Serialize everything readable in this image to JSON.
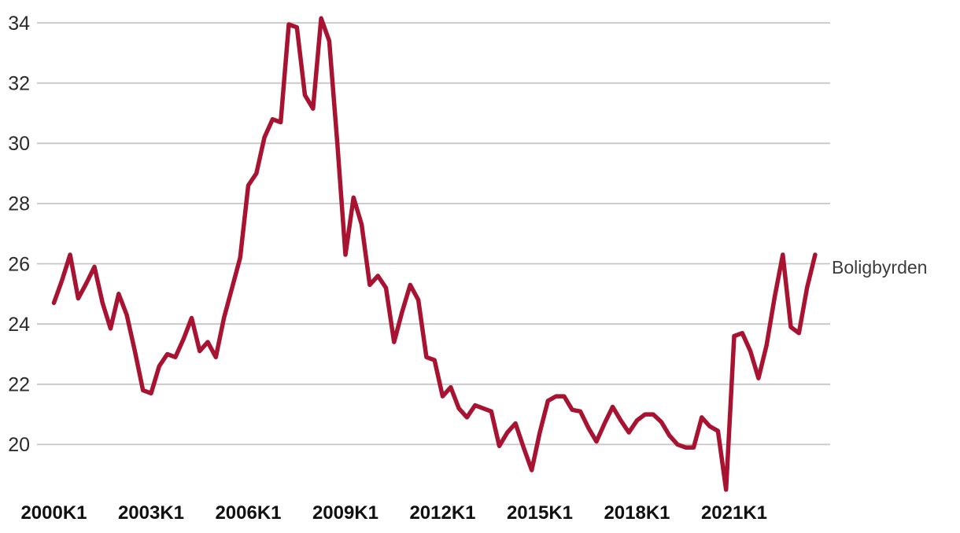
{
  "chart_data": {
    "type": "line",
    "title": "",
    "series_label": "Boligbyrden",
    "line_color": "#a81332",
    "grid_color": "#c6c6c6",
    "y_label_color": "#2b2b2b",
    "x_label_color": "#111111",
    "legend_text_color": "#3c3c3c",
    "grid_on": true,
    "legend_position": "right-of-line-end",
    "ylim": [
      18.2,
      34.4
    ],
    "y_ticks": [
      34,
      32,
      30,
      28,
      26,
      24,
      22,
      20
    ],
    "x_tick_labels": [
      "2000K1",
      "2003K1",
      "2006K1",
      "2009K1",
      "2012K1",
      "2015K1",
      "2018K1",
      "2021K1"
    ],
    "x_tick_quarter_indices": [
      0,
      12,
      24,
      36,
      48,
      60,
      72,
      84
    ],
    "x_unit": "quarter",
    "quarters": [
      "2000K1",
      "2000K2",
      "2000K3",
      "2000K4",
      "2001K1",
      "2001K2",
      "2001K3",
      "2001K4",
      "2002K1",
      "2002K2",
      "2002K3",
      "2002K4",
      "2003K1",
      "2003K2",
      "2003K3",
      "2003K4",
      "2004K1",
      "2004K2",
      "2004K3",
      "2004K4",
      "2005K1",
      "2005K2",
      "2005K3",
      "2005K4",
      "2006K1",
      "2006K2",
      "2006K3",
      "2006K4",
      "2007K1",
      "2007K2",
      "2007K3",
      "2007K4",
      "2008K1",
      "2008K2",
      "2008K3",
      "2008K4",
      "2009K1",
      "2009K2",
      "2009K3",
      "2009K4",
      "2010K1",
      "2010K2",
      "2010K3",
      "2010K4",
      "2011K1",
      "2011K2",
      "2011K3",
      "2011K4",
      "2012K1",
      "2012K2",
      "2012K3",
      "2012K4",
      "2013K1",
      "2013K2",
      "2013K3",
      "2013K4",
      "2014K1",
      "2014K2",
      "2014K3",
      "2014K4",
      "2015K1",
      "2015K2",
      "2015K3",
      "2015K4",
      "2016K1",
      "2016K2",
      "2016K3",
      "2016K4",
      "2017K1",
      "2017K2",
      "2017K3",
      "2017K4",
      "2018K1",
      "2018K2",
      "2018K3",
      "2018K4",
      "2019K1",
      "2019K2",
      "2019K3",
      "2019K4",
      "2020K1",
      "2020K2",
      "2020K3",
      "2020K4",
      "2021K1",
      "2021K2",
      "2021K3",
      "2021K4",
      "2022K1",
      "2022K2",
      "2022K3",
      "2022K4",
      "2023K1",
      "2023K2",
      "2023K3"
    ],
    "values": [
      24.7,
      25.45,
      26.3,
      24.85,
      25.35,
      25.9,
      24.7,
      23.85,
      25.0,
      24.3,
      23.1,
      21.8,
      21.7,
      22.6,
      23.0,
      22.9,
      23.5,
      24.2,
      23.1,
      23.4,
      22.9,
      24.2,
      25.2,
      26.2,
      28.6,
      29.0,
      30.2,
      30.8,
      30.7,
      33.95,
      33.85,
      31.6,
      31.15,
      34.15,
      33.4,
      30.0,
      26.3,
      28.2,
      27.3,
      25.3,
      25.6,
      25.2,
      23.4,
      24.4,
      25.3,
      24.8,
      22.9,
      22.8,
      21.6,
      21.9,
      21.2,
      20.9,
      21.3,
      21.2,
      21.1,
      19.95,
      20.4,
      20.7,
      19.9,
      19.15,
      20.4,
      21.45,
      21.6,
      21.6,
      21.15,
      21.1,
      20.55,
      20.1,
      20.7,
      21.25,
      20.8,
      20.4,
      20.8,
      21.0,
      21.0,
      20.75,
      20.3,
      20.0,
      19.9,
      19.9,
      20.9,
      20.6,
      20.45,
      18.5,
      23.6,
      23.7,
      23.1,
      22.2,
      23.3,
      24.9,
      26.3,
      23.9,
      23.7,
      25.2,
      26.3
    ]
  }
}
